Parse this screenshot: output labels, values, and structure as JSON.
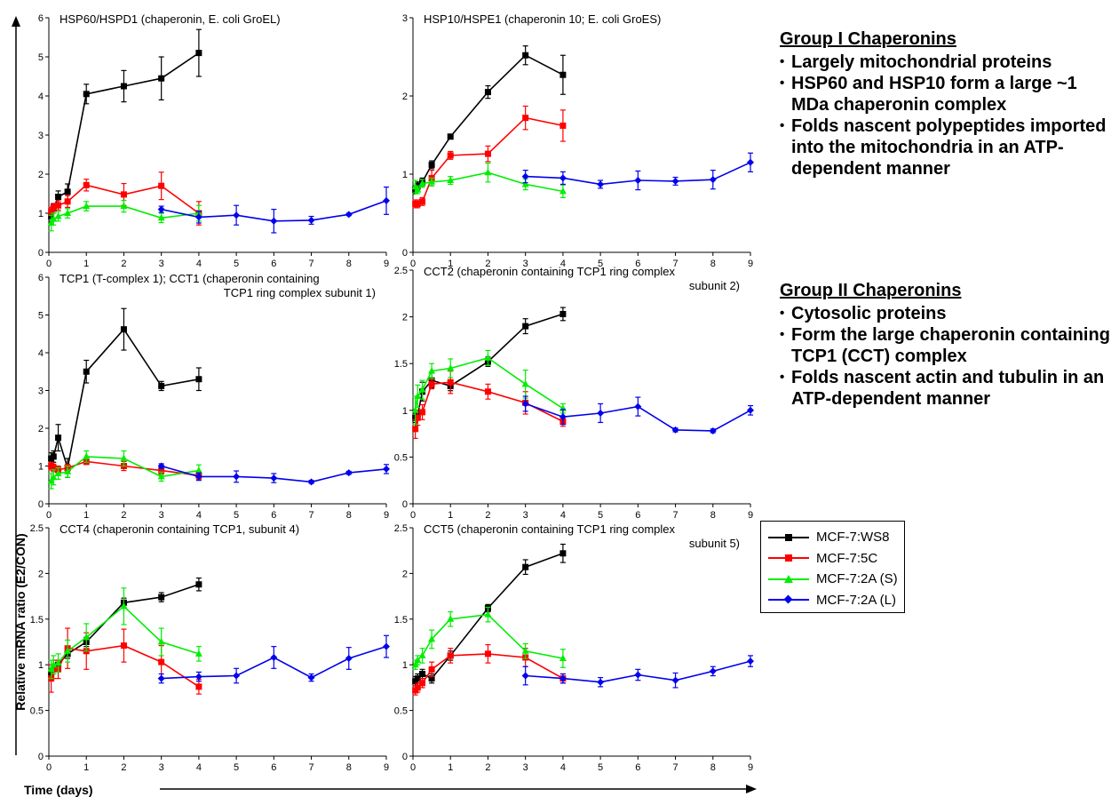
{
  "series_styles": [
    {
      "name": "MCF-7:WS8",
      "color": "#000000",
      "marker": "square"
    },
    {
      "name": "MCF-7:5C",
      "color": "#ff0000",
      "marker": "square"
    },
    {
      "name": "MCF-7:2A (S)",
      "color": "#00ee00",
      "marker": "triangle"
    },
    {
      "name": "MCF-7:2A (L)",
      "color": "#0000ee",
      "marker": "diamond"
    }
  ],
  "figure": {
    "ylabel": "Relative mRNA ratio (E2/CON)",
    "xlabel": "Time (days)"
  },
  "notes": {
    "group1": {
      "heading": "Group I Chaperonins",
      "bullets": [
        "Largely mitochondrial proteins",
        "HSP60 and HSP10 form a large ~1 MDa chaperonin complex",
        "Folds nascent polypeptides imported into the mitochondria in an ATP-dependent manner"
      ]
    },
    "group2": {
      "heading": "Group II Chaperonins",
      "bullets": [
        "Cytosolic proteins",
        "Form the large chaperonin containing TCP1 (CCT) complex",
        "Folds nascent actin and tubulin in an ATP-dependent manner"
      ]
    }
  },
  "legend": {
    "items": [
      "MCF-7:WS8",
      "MCF-7:5C",
      "MCF-7:2A (S)",
      "MCF-7:2A (L)"
    ]
  },
  "chart_data": [
    {
      "type": "line",
      "title_lines": [
        "HSP60/HSPD1 (chaperonin, E. coli GroEL)"
      ],
      "xlim": [
        0,
        9
      ],
      "ylim": [
        0,
        6
      ],
      "yticks": [
        0,
        1,
        2,
        3,
        4,
        5,
        6
      ],
      "xticks": [
        0,
        1,
        2,
        3,
        4,
        5,
        6,
        7,
        8,
        9
      ],
      "series": [
        {
          "name": "MCF-7:WS8",
          "x": [
            0.0625,
            0.125,
            0.25,
            0.5,
            1,
            2,
            3,
            4
          ],
          "y": [
            0.92,
            1.12,
            1.42,
            1.55,
            4.05,
            4.25,
            4.45,
            5.1
          ],
          "err": [
            0.12,
            0.12,
            0.15,
            0.2,
            0.25,
            0.4,
            0.55,
            0.6
          ]
        },
        {
          "name": "MCF-7:5C",
          "x": [
            0.0625,
            0.125,
            0.25,
            0.5,
            1,
            2,
            3,
            4
          ],
          "y": [
            1.05,
            1.15,
            1.2,
            1.3,
            1.72,
            1.48,
            1.7,
            1.0
          ],
          "err": [
            0.1,
            0.1,
            0.12,
            0.15,
            0.15,
            0.28,
            0.35,
            0.3
          ]
        },
        {
          "name": "MCF-7:2A (S)",
          "x": [
            0.0625,
            0.125,
            0.25,
            0.5,
            1,
            2,
            3,
            4
          ],
          "y": [
            0.75,
            0.85,
            0.92,
            1.0,
            1.18,
            1.18,
            0.88,
            1.0
          ],
          "err": [
            0.2,
            0.15,
            0.12,
            0.12,
            0.12,
            0.15,
            0.12,
            0.2
          ]
        },
        {
          "name": "MCF-7:2A (L)",
          "x": [
            3,
            4,
            5,
            6,
            7,
            8,
            9
          ],
          "y": [
            1.1,
            0.9,
            0.95,
            0.8,
            0.82,
            0.97,
            1.32
          ],
          "err": [
            0.08,
            0.15,
            0.25,
            0.3,
            0.1,
            0.03,
            0.35
          ]
        }
      ]
    },
    {
      "type": "line",
      "title_lines": [
        "HSP10/HSPE1 (chaperonin 10; E. coli GroES)"
      ],
      "xlim": [
        0,
        9
      ],
      "ylim": [
        0,
        3
      ],
      "yticks": [
        0,
        1,
        2,
        3
      ],
      "xticks": [
        0,
        1,
        2,
        3,
        4,
        5,
        6,
        7,
        8,
        9
      ],
      "series": [
        {
          "name": "MCF-7:WS8",
          "x": [
            0.0625,
            0.125,
            0.25,
            0.5,
            1,
            2,
            3,
            4
          ],
          "y": [
            0.8,
            0.85,
            0.9,
            1.12,
            1.48,
            2.05,
            2.52,
            2.27
          ],
          "err": [
            0.05,
            0.05,
            0.05,
            0.05,
            0.03,
            0.08,
            0.12,
            0.25
          ]
        },
        {
          "name": "MCF-7:5C",
          "x": [
            0.0625,
            0.125,
            0.25,
            0.5,
            1,
            2,
            3,
            4
          ],
          "y": [
            0.62,
            0.62,
            0.65,
            0.95,
            1.24,
            1.26,
            1.72,
            1.62
          ],
          "err": [
            0.05,
            0.05,
            0.05,
            0.1,
            0.05,
            0.1,
            0.15,
            0.2
          ]
        },
        {
          "name": "MCF-7:2A (S)",
          "x": [
            0.0625,
            0.125,
            0.25,
            0.5,
            1,
            2,
            3,
            4
          ],
          "y": [
            0.84,
            0.8,
            0.88,
            0.9,
            0.92,
            1.02,
            0.87,
            0.78
          ],
          "err": [
            0.08,
            0.05,
            0.05,
            0.05,
            0.05,
            0.12,
            0.07,
            0.08
          ]
        },
        {
          "name": "MCF-7:2A (L)",
          "x": [
            3,
            4,
            5,
            6,
            7,
            8,
            9
          ],
          "y": [
            0.97,
            0.95,
            0.87,
            0.92,
            0.91,
            0.93,
            1.15
          ],
          "err": [
            0.08,
            0.08,
            0.05,
            0.12,
            0.05,
            0.12,
            0.12
          ]
        }
      ]
    },
    {
      "type": "line",
      "title_lines": [
        "TCP1 (T-complex 1); CCT1 (chaperonin containing",
        "TCP1 ring complex subunit 1)"
      ],
      "xlim": [
        0,
        9
      ],
      "ylim": [
        0,
        6
      ],
      "yticks": [
        0,
        1,
        2,
        3,
        4,
        5,
        6
      ],
      "xticks": [
        0,
        1,
        2,
        3,
        4,
        5,
        6,
        7,
        8,
        9
      ],
      "series": [
        {
          "name": "MCF-7:WS8",
          "x": [
            0.0625,
            0.125,
            0.25,
            0.5,
            1,
            2,
            3,
            4
          ],
          "y": [
            1.2,
            1.25,
            1.75,
            0.95,
            3.5,
            4.62,
            3.12,
            3.3
          ],
          "err": [
            0.15,
            0.15,
            0.35,
            0.25,
            0.3,
            0.55,
            0.12,
            0.3
          ]
        },
        {
          "name": "MCF-7:5C",
          "x": [
            0.0625,
            0.125,
            0.25,
            0.5,
            1,
            2,
            3,
            4
          ],
          "y": [
            1.0,
            0.95,
            0.9,
            0.95,
            1.12,
            1.0,
            0.88,
            0.75
          ],
          "err": [
            0.1,
            0.1,
            0.1,
            0.1,
            0.08,
            0.12,
            0.1,
            0.1
          ]
        },
        {
          "name": "MCF-7:2A (S)",
          "x": [
            0.0625,
            0.125,
            0.25,
            0.5,
            1,
            2,
            3,
            4
          ],
          "y": [
            0.6,
            0.7,
            0.8,
            0.85,
            1.25,
            1.2,
            0.72,
            0.88
          ],
          "err": [
            0.2,
            0.2,
            0.15,
            0.15,
            0.15,
            0.2,
            0.12,
            0.15
          ]
        },
        {
          "name": "MCF-7:2A (L)",
          "x": [
            3,
            4,
            5,
            6,
            7,
            8,
            9
          ],
          "y": [
            1.0,
            0.72,
            0.72,
            0.68,
            0.58,
            0.82,
            0.92
          ],
          "err": [
            0.06,
            0.1,
            0.15,
            0.12,
            0.04,
            0.04,
            0.12
          ]
        }
      ]
    },
    {
      "type": "line",
      "title_lines": [
        "CCT2 (chaperonin containing TCP1 ring complex",
        "subunit 2)"
      ],
      "xlim": [
        0,
        9
      ],
      "ylim": [
        0,
        2.5
      ],
      "yticks": [
        0,
        0.5,
        1,
        1.5,
        2,
        2.5
      ],
      "xticks": [
        0,
        1,
        2,
        3,
        4,
        5,
        6,
        7,
        8,
        9
      ],
      "series": [
        {
          "name": "MCF-7:WS8",
          "x": [
            0.0625,
            0.125,
            0.25,
            0.5,
            1,
            2,
            3,
            4
          ],
          "y": [
            0.92,
            0.95,
            1.2,
            1.32,
            1.26,
            1.52,
            1.9,
            2.03
          ],
          "err": [
            0.05,
            0.05,
            0.1,
            0.08,
            0.05,
            0.05,
            0.08,
            0.07
          ]
        },
        {
          "name": "MCF-7:5C",
          "x": [
            0.0625,
            0.125,
            0.25,
            0.5,
            1,
            2,
            3,
            4
          ],
          "y": [
            0.8,
            0.92,
            0.98,
            1.28,
            1.3,
            1.2,
            1.08,
            0.88
          ],
          "err": [
            0.1,
            0.08,
            0.08,
            0.05,
            0.12,
            0.08,
            0.12,
            0.05
          ]
        },
        {
          "name": "MCF-7:2A (S)",
          "x": [
            0.0625,
            0.125,
            0.25,
            0.5,
            1,
            2,
            3,
            4
          ],
          "y": [
            1.0,
            1.15,
            1.22,
            1.42,
            1.45,
            1.56,
            1.28,
            1.02
          ],
          "err": [
            0.15,
            0.12,
            0.1,
            0.08,
            0.1,
            0.08,
            0.15,
            0.05
          ]
        },
        {
          "name": "MCF-7:2A (L)",
          "x": [
            3,
            4,
            5,
            6,
            7,
            8,
            9
          ],
          "y": [
            1.07,
            0.93,
            0.97,
            1.04,
            0.79,
            0.78,
            1.0
          ],
          "err": [
            0.08,
            0.08,
            0.1,
            0.1,
            0.02,
            0.02,
            0.05
          ]
        }
      ]
    },
    {
      "type": "line",
      "title_lines": [
        "CCT4 (chaperonin containing TCP1, subunit 4)"
      ],
      "xlim": [
        0,
        9
      ],
      "ylim": [
        0,
        2.5
      ],
      "yticks": [
        0,
        0.5,
        1,
        1.5,
        2,
        2.5
      ],
      "xticks": [
        0,
        1,
        2,
        3,
        4,
        5,
        6,
        7,
        8,
        9
      ],
      "series": [
        {
          "name": "MCF-7:WS8",
          "x": [
            0.0625,
            0.125,
            0.25,
            0.5,
            1,
            2,
            3,
            4
          ],
          "y": [
            0.9,
            0.95,
            1.0,
            1.12,
            1.25,
            1.68,
            1.74,
            1.88
          ],
          "err": [
            0.05,
            0.05,
            0.05,
            0.05,
            0.05,
            0.05,
            0.05,
            0.07
          ]
        },
        {
          "name": "MCF-7:5C",
          "x": [
            0.0625,
            0.125,
            0.25,
            0.5,
            1,
            2,
            3,
            4
          ],
          "y": [
            0.85,
            0.95,
            0.95,
            1.18,
            1.15,
            1.21,
            1.03,
            0.76
          ],
          "err": [
            0.15,
            0.1,
            0.1,
            0.22,
            0.2,
            0.18,
            0.18,
            0.08
          ]
        },
        {
          "name": "MCF-7:2A (S)",
          "x": [
            0.0625,
            0.125,
            0.25,
            0.5,
            1,
            2,
            3,
            4
          ],
          "y": [
            0.95,
            1.0,
            1.02,
            1.15,
            1.3,
            1.64,
            1.25,
            1.12
          ],
          "err": [
            0.1,
            0.1,
            0.1,
            0.12,
            0.15,
            0.2,
            0.15,
            0.08
          ]
        },
        {
          "name": "MCF-7:2A (L)",
          "x": [
            3,
            4,
            5,
            6,
            7,
            8,
            9
          ],
          "y": [
            0.85,
            0.87,
            0.88,
            1.08,
            0.86,
            1.07,
            1.2
          ],
          "err": [
            0.05,
            0.05,
            0.08,
            0.12,
            0.04,
            0.12,
            0.12
          ]
        }
      ]
    },
    {
      "type": "line",
      "title_lines": [
        "CCT5 (chaperonin containing TCP1 ring complex",
        "subunit 5)"
      ],
      "xlim": [
        0,
        9
      ],
      "ylim": [
        0,
        2.5
      ],
      "yticks": [
        0,
        0.5,
        1,
        1.5,
        2,
        2.5
      ],
      "xticks": [
        0,
        1,
        2,
        3,
        4,
        5,
        6,
        7,
        8,
        9
      ],
      "series": [
        {
          "name": "MCF-7:WS8",
          "x": [
            0.0625,
            0.125,
            0.25,
            0.5,
            1,
            2,
            3,
            4
          ],
          "y": [
            0.82,
            0.85,
            0.9,
            0.85,
            1.1,
            1.62,
            2.07,
            2.22
          ],
          "err": [
            0.05,
            0.05,
            0.05,
            0.05,
            0.05,
            0.04,
            0.08,
            0.1
          ]
        },
        {
          "name": "MCF-7:5C",
          "x": [
            0.0625,
            0.125,
            0.25,
            0.5,
            1,
            2,
            3,
            4
          ],
          "y": [
            0.72,
            0.75,
            0.8,
            0.95,
            1.1,
            1.12,
            1.08,
            0.85
          ],
          "err": [
            0.05,
            0.05,
            0.05,
            0.08,
            0.08,
            0.1,
            0.1,
            0.05
          ]
        },
        {
          "name": "MCF-7:2A (S)",
          "x": [
            0.0625,
            0.125,
            0.25,
            0.5,
            1,
            2,
            3,
            4
          ],
          "y": [
            1.0,
            1.05,
            1.1,
            1.28,
            1.5,
            1.55,
            1.15,
            1.07
          ],
          "err": [
            0.05,
            0.05,
            0.08,
            0.1,
            0.08,
            0.08,
            0.08,
            0.1
          ]
        },
        {
          "name": "MCF-7:2A (L)",
          "x": [
            3,
            4,
            5,
            6,
            7,
            8,
            9
          ],
          "y": [
            0.88,
            0.85,
            0.81,
            0.89,
            0.83,
            0.93,
            1.04
          ],
          "err": [
            0.1,
            0.05,
            0.05,
            0.06,
            0.08,
            0.05,
            0.06
          ]
        }
      ]
    }
  ]
}
